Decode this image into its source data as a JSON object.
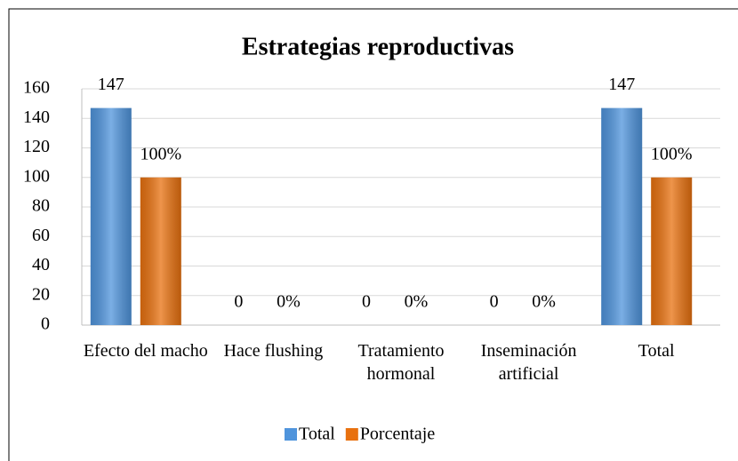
{
  "chart_data": {
    "type": "bar",
    "title": "Estrategias reproductivas",
    "categories": [
      "Efecto del macho",
      "Hace flushing",
      "Tratamiento hormonal",
      "Inseminación artificial",
      "Total"
    ],
    "series": [
      {
        "name": "Total",
        "color": "#4f94dc",
        "values": [
          147,
          0,
          0,
          0,
          147
        ]
      },
      {
        "name": "Porcentaje",
        "color": "#e8710f",
        "values": [
          100,
          0,
          0,
          0,
          100
        ],
        "value_labels": [
          "100%",
          "0%",
          "0%",
          "0%",
          "100%"
        ]
      }
    ],
    "ylim": [
      0,
      160
    ],
    "yticks": [
      0,
      20,
      40,
      60,
      80,
      100,
      120,
      140,
      160
    ],
    "grid": true,
    "legend": "bottom"
  }
}
